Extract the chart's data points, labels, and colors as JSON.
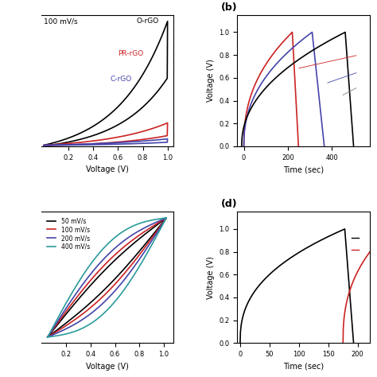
{
  "panel_a_note": "100 mV/s",
  "panel_b_label": "(b)",
  "panel_d_label": "(d)",
  "colors": {
    "black": "#000000",
    "red": "#cc2222",
    "blue": "#4444aa",
    "teal": "#2a9a9a"
  },
  "legend_c": [
    "50 mV/s",
    "100 mV/s",
    "200 mV/s",
    "400 mV/s"
  ],
  "legend_c_colors": [
    "#000000",
    "#cc2222",
    "#4444aa",
    "#2a9a9a"
  ],
  "b_annotline_red": [
    240,
    0.68,
    520,
    0.8
  ],
  "b_annotline_blue": [
    370,
    0.55,
    520,
    0.65
  ],
  "b_annotline_gray": [
    440,
    0.44,
    520,
    0.52
  ]
}
